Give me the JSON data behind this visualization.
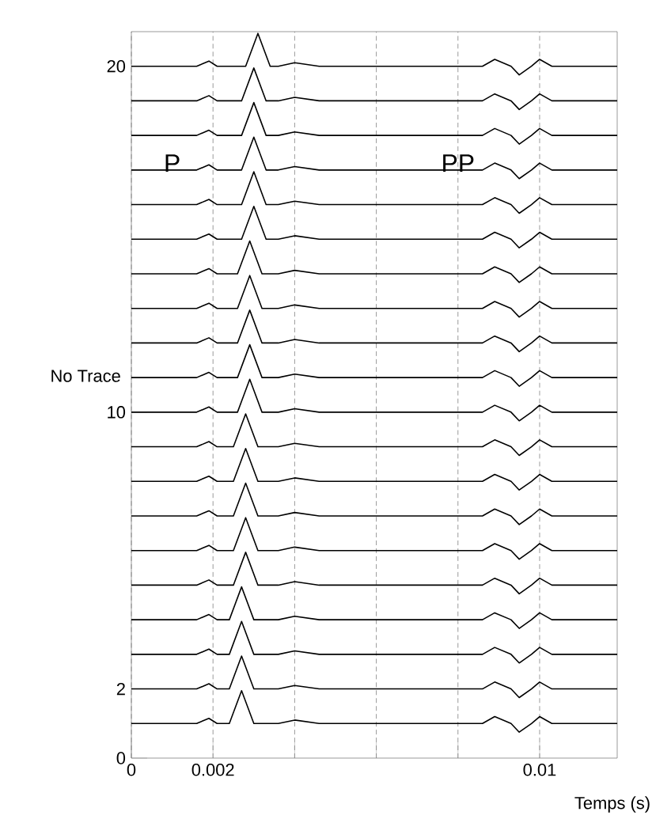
{
  "chart_data": {
    "type": "line",
    "xlabel": "Temps (s)",
    "ylabel": "No Trace",
    "xlim": [
      0,
      0.0119
    ],
    "ylim": [
      0,
      21
    ],
    "xticks": [
      0,
      0.002,
      {
        "value": 0.004,
        "label": null
      },
      {
        "value": 0.006,
        "label": null
      },
      {
        "value": 0.008,
        "label": null
      },
      0.01
    ],
    "yticks": [
      0,
      2,
      10,
      20
    ],
    "grid": "x",
    "annotations": [
      {
        "text": "P",
        "x": 0.001,
        "y": 17.2
      },
      {
        "text": "PP",
        "x": 0.008,
        "y": 17.2
      }
    ],
    "series": [
      {
        "color": "#000000",
        "x": [
          0,
          0.0016,
          0.0019,
          0.0021,
          0.0024,
          0.0027,
          0.003,
          0.0036,
          0.004,
          0.0046,
          0.0086,
          0.0089,
          0.0093,
          0.0095,
          0.0098,
          0.01,
          0.0103,
          0.0119
        ],
        "values": [
          1,
          1,
          1.15,
          1,
          1,
          1.95,
          1,
          1,
          1.1,
          1,
          1,
          1.2,
          1,
          0.75,
          1,
          1.2,
          1,
          1
        ]
      },
      {
        "color": "#000000",
        "x": [
          0,
          0.0016,
          0.0019,
          0.0021,
          0.0024,
          0.0027,
          0.003,
          0.0036,
          0.004,
          0.0046,
          0.0086,
          0.0089,
          0.0093,
          0.0095,
          0.0098,
          0.01,
          0.0103,
          0.0119
        ],
        "values": [
          2,
          2,
          2.15,
          2,
          2,
          2.95,
          2,
          2,
          2.1,
          2,
          2,
          2.2,
          2,
          1.75,
          2,
          2.2,
          2,
          2
        ]
      },
      {
        "color": "#000000",
        "x": [
          0,
          0.0016,
          0.0019,
          0.0021,
          0.0024,
          0.0027,
          0.003,
          0.0036,
          0.004,
          0.0046,
          0.0086,
          0.0089,
          0.0093,
          0.0095,
          0.0098,
          0.01,
          0.0103,
          0.0119
        ],
        "values": [
          3,
          3,
          3.15,
          3,
          3,
          3.95,
          3,
          3,
          3.1,
          3,
          3,
          3.2,
          3,
          2.75,
          3,
          3.2,
          3,
          3
        ]
      },
      {
        "color": "#000000",
        "x": [
          0,
          0.0016,
          0.0019,
          0.0021,
          0.0024,
          0.0027,
          0.003,
          0.0036,
          0.004,
          0.0046,
          0.0086,
          0.0089,
          0.0093,
          0.0095,
          0.0098,
          0.01,
          0.0103,
          0.0119
        ],
        "values": [
          4,
          4,
          4.15,
          4,
          4,
          4.95,
          4,
          4,
          4.1,
          4,
          4,
          4.2,
          4,
          3.75,
          4,
          4.2,
          4,
          4
        ]
      },
      {
        "color": "#000000",
        "x": [
          0,
          0.0016,
          0.0019,
          0.0021,
          0.0025,
          0.0028,
          0.0031,
          0.0036,
          0.004,
          0.0046,
          0.0086,
          0.0089,
          0.0093,
          0.0095,
          0.0098,
          0.01,
          0.0103,
          0.0119
        ],
        "values": [
          5,
          5,
          5.15,
          5,
          5,
          5.95,
          5,
          5,
          5.1,
          5,
          5,
          5.2,
          5,
          4.75,
          5,
          5.2,
          5,
          5
        ]
      },
      {
        "color": "#000000",
        "x": [
          0,
          0.0016,
          0.0019,
          0.0021,
          0.0025,
          0.0028,
          0.0031,
          0.0036,
          0.004,
          0.0046,
          0.0086,
          0.0089,
          0.0093,
          0.0095,
          0.0098,
          0.01,
          0.0103,
          0.0119
        ],
        "values": [
          6,
          6,
          6.15,
          6,
          6,
          6.95,
          6,
          6,
          6.1,
          6,
          6,
          6.2,
          6,
          5.75,
          6,
          6.2,
          6,
          6
        ]
      },
      {
        "color": "#000000",
        "x": [
          0,
          0.0016,
          0.0019,
          0.0021,
          0.0025,
          0.0028,
          0.0031,
          0.0036,
          0.004,
          0.0046,
          0.0086,
          0.0089,
          0.0093,
          0.0095,
          0.0098,
          0.01,
          0.0103,
          0.0119
        ],
        "values": [
          7,
          7,
          7.15,
          7,
          7,
          7.95,
          7,
          7,
          7.1,
          7,
          7,
          7.2,
          7,
          6.75,
          7,
          7.2,
          7,
          7
        ]
      },
      {
        "color": "#000000",
        "x": [
          0,
          0.0016,
          0.0019,
          0.0021,
          0.0025,
          0.0028,
          0.0031,
          0.0036,
          0.004,
          0.0046,
          0.0086,
          0.0089,
          0.0093,
          0.0095,
          0.0098,
          0.01,
          0.0103,
          0.0119
        ],
        "values": [
          8,
          8,
          8.15,
          8,
          8,
          8.95,
          8,
          8,
          8.1,
          8,
          8,
          8.2,
          8,
          7.75,
          8,
          8.2,
          8,
          8
        ]
      },
      {
        "color": "#000000",
        "x": [
          0,
          0.0016,
          0.0019,
          0.0021,
          0.0025,
          0.0028,
          0.0031,
          0.0036,
          0.004,
          0.0046,
          0.0086,
          0.0089,
          0.0093,
          0.0095,
          0.0098,
          0.01,
          0.0103,
          0.0119
        ],
        "values": [
          9,
          9,
          9.15,
          9,
          9,
          9.95,
          9,
          9,
          9.1,
          9,
          9,
          9.2,
          9,
          8.75,
          9,
          9.2,
          9,
          9
        ]
      },
      {
        "color": "#000000",
        "x": [
          0,
          0.0016,
          0.0019,
          0.0021,
          0.0026,
          0.0029,
          0.0032,
          0.0036,
          0.004,
          0.0046,
          0.0086,
          0.0089,
          0.0093,
          0.0095,
          0.0098,
          0.01,
          0.0103,
          0.0119
        ],
        "values": [
          10,
          10,
          10.15,
          10,
          10,
          10.95,
          10,
          10,
          10.1,
          10,
          10,
          10.2,
          10,
          9.75,
          10,
          10.2,
          10,
          10
        ]
      },
      {
        "color": "#000000",
        "x": [
          0,
          0.0016,
          0.0019,
          0.0021,
          0.0026,
          0.0029,
          0.0032,
          0.0036,
          0.004,
          0.0046,
          0.0086,
          0.0089,
          0.0093,
          0.0095,
          0.0098,
          0.01,
          0.0103,
          0.0119
        ],
        "values": [
          11,
          11,
          11.15,
          11,
          11,
          11.95,
          11,
          11,
          11.1,
          11,
          11,
          11.2,
          11,
          10.75,
          11,
          11.2,
          11,
          11
        ]
      },
      {
        "color": "#000000",
        "x": [
          0,
          0.0016,
          0.0019,
          0.0021,
          0.0026,
          0.0029,
          0.0032,
          0.0036,
          0.004,
          0.0046,
          0.0086,
          0.0089,
          0.0093,
          0.0095,
          0.0098,
          0.01,
          0.0103,
          0.0119
        ],
        "values": [
          12,
          12,
          12.15,
          12,
          12,
          12.95,
          12,
          12,
          12.1,
          12,
          12,
          12.2,
          12,
          11.75,
          12,
          12.2,
          12,
          12
        ]
      },
      {
        "color": "#000000",
        "x": [
          0,
          0.0016,
          0.0019,
          0.0021,
          0.0026,
          0.0029,
          0.0032,
          0.0036,
          0.004,
          0.0046,
          0.0086,
          0.0089,
          0.0093,
          0.0095,
          0.0098,
          0.01,
          0.0103,
          0.0119
        ],
        "values": [
          13,
          13,
          13.15,
          13,
          13,
          13.95,
          13,
          13,
          13.1,
          13,
          13,
          13.2,
          13,
          12.75,
          13,
          13.2,
          13,
          13
        ]
      },
      {
        "color": "#000000",
        "x": [
          0,
          0.0016,
          0.0019,
          0.0021,
          0.0026,
          0.0029,
          0.0032,
          0.0036,
          0.004,
          0.0046,
          0.0086,
          0.0089,
          0.0093,
          0.0095,
          0.0098,
          0.01,
          0.0103,
          0.0119
        ],
        "values": [
          14,
          14,
          14.15,
          14,
          14,
          14.95,
          14,
          14,
          14.1,
          14,
          14,
          14.2,
          14,
          13.75,
          14,
          14.2,
          14,
          14
        ]
      },
      {
        "color": "#000000",
        "x": [
          0,
          0.0016,
          0.0019,
          0.0021,
          0.0027,
          0.003,
          0.0033,
          0.0036,
          0.004,
          0.0046,
          0.0086,
          0.0089,
          0.0093,
          0.0095,
          0.0098,
          0.01,
          0.0103,
          0.0119
        ],
        "values": [
          15,
          15,
          15.15,
          15,
          15,
          15.95,
          15,
          15,
          15.1,
          15,
          15,
          15.2,
          15,
          14.75,
          15,
          15.2,
          15,
          15
        ]
      },
      {
        "color": "#000000",
        "x": [
          0,
          0.0016,
          0.0019,
          0.0021,
          0.0027,
          0.003,
          0.0033,
          0.0036,
          0.004,
          0.0046,
          0.0086,
          0.0089,
          0.0093,
          0.0095,
          0.0098,
          0.01,
          0.0103,
          0.0119
        ],
        "values": [
          16,
          16,
          16.15,
          16,
          16,
          16.95,
          16,
          16,
          16.1,
          16,
          16,
          16.2,
          16,
          15.75,
          16,
          16.2,
          16,
          16
        ]
      },
      {
        "color": "#000000",
        "x": [
          0,
          0.0016,
          0.0019,
          0.0021,
          0.0027,
          0.003,
          0.0033,
          0.0036,
          0.004,
          0.0046,
          0.0086,
          0.0089,
          0.0093,
          0.0095,
          0.0098,
          0.01,
          0.0103,
          0.0119
        ],
        "values": [
          17,
          17,
          17.15,
          17,
          17,
          17.95,
          17,
          17,
          17.1,
          17,
          17,
          17.2,
          17,
          16.75,
          17,
          17.2,
          17,
          17
        ]
      },
      {
        "color": "#000000",
        "x": [
          0,
          0.0016,
          0.0019,
          0.0021,
          0.0027,
          0.003,
          0.0033,
          0.0036,
          0.004,
          0.0046,
          0.0086,
          0.0089,
          0.0093,
          0.0095,
          0.0098,
          0.01,
          0.0103,
          0.0119
        ],
        "values": [
          18,
          18,
          18.15,
          18,
          18,
          18.95,
          18,
          18,
          18.1,
          18,
          18,
          18.2,
          18,
          17.75,
          18,
          18.2,
          18,
          18
        ]
      },
      {
        "color": "#000000",
        "x": [
          0,
          0.0016,
          0.0019,
          0.0021,
          0.0027,
          0.003,
          0.0033,
          0.0036,
          0.004,
          0.0046,
          0.0086,
          0.0089,
          0.0093,
          0.0095,
          0.0098,
          0.01,
          0.0103,
          0.0119
        ],
        "values": [
          19,
          19,
          19.15,
          19,
          19,
          19.95,
          19,
          19,
          19.1,
          19,
          19,
          19.2,
          19,
          18.75,
          19,
          19.2,
          19,
          19
        ]
      },
      {
        "color": "#000000",
        "x": [
          0,
          0.0016,
          0.0019,
          0.0021,
          0.0028,
          0.0031,
          0.0034,
          0.0036,
          0.004,
          0.0046,
          0.0086,
          0.0089,
          0.0093,
          0.0095,
          0.0098,
          0.01,
          0.0103,
          0.0119
        ],
        "values": [
          20,
          20,
          20.15,
          20,
          20,
          20.95,
          20,
          20,
          20.1,
          20,
          20,
          20.2,
          20,
          19.75,
          20,
          20.2,
          20,
          20
        ]
      }
    ]
  }
}
